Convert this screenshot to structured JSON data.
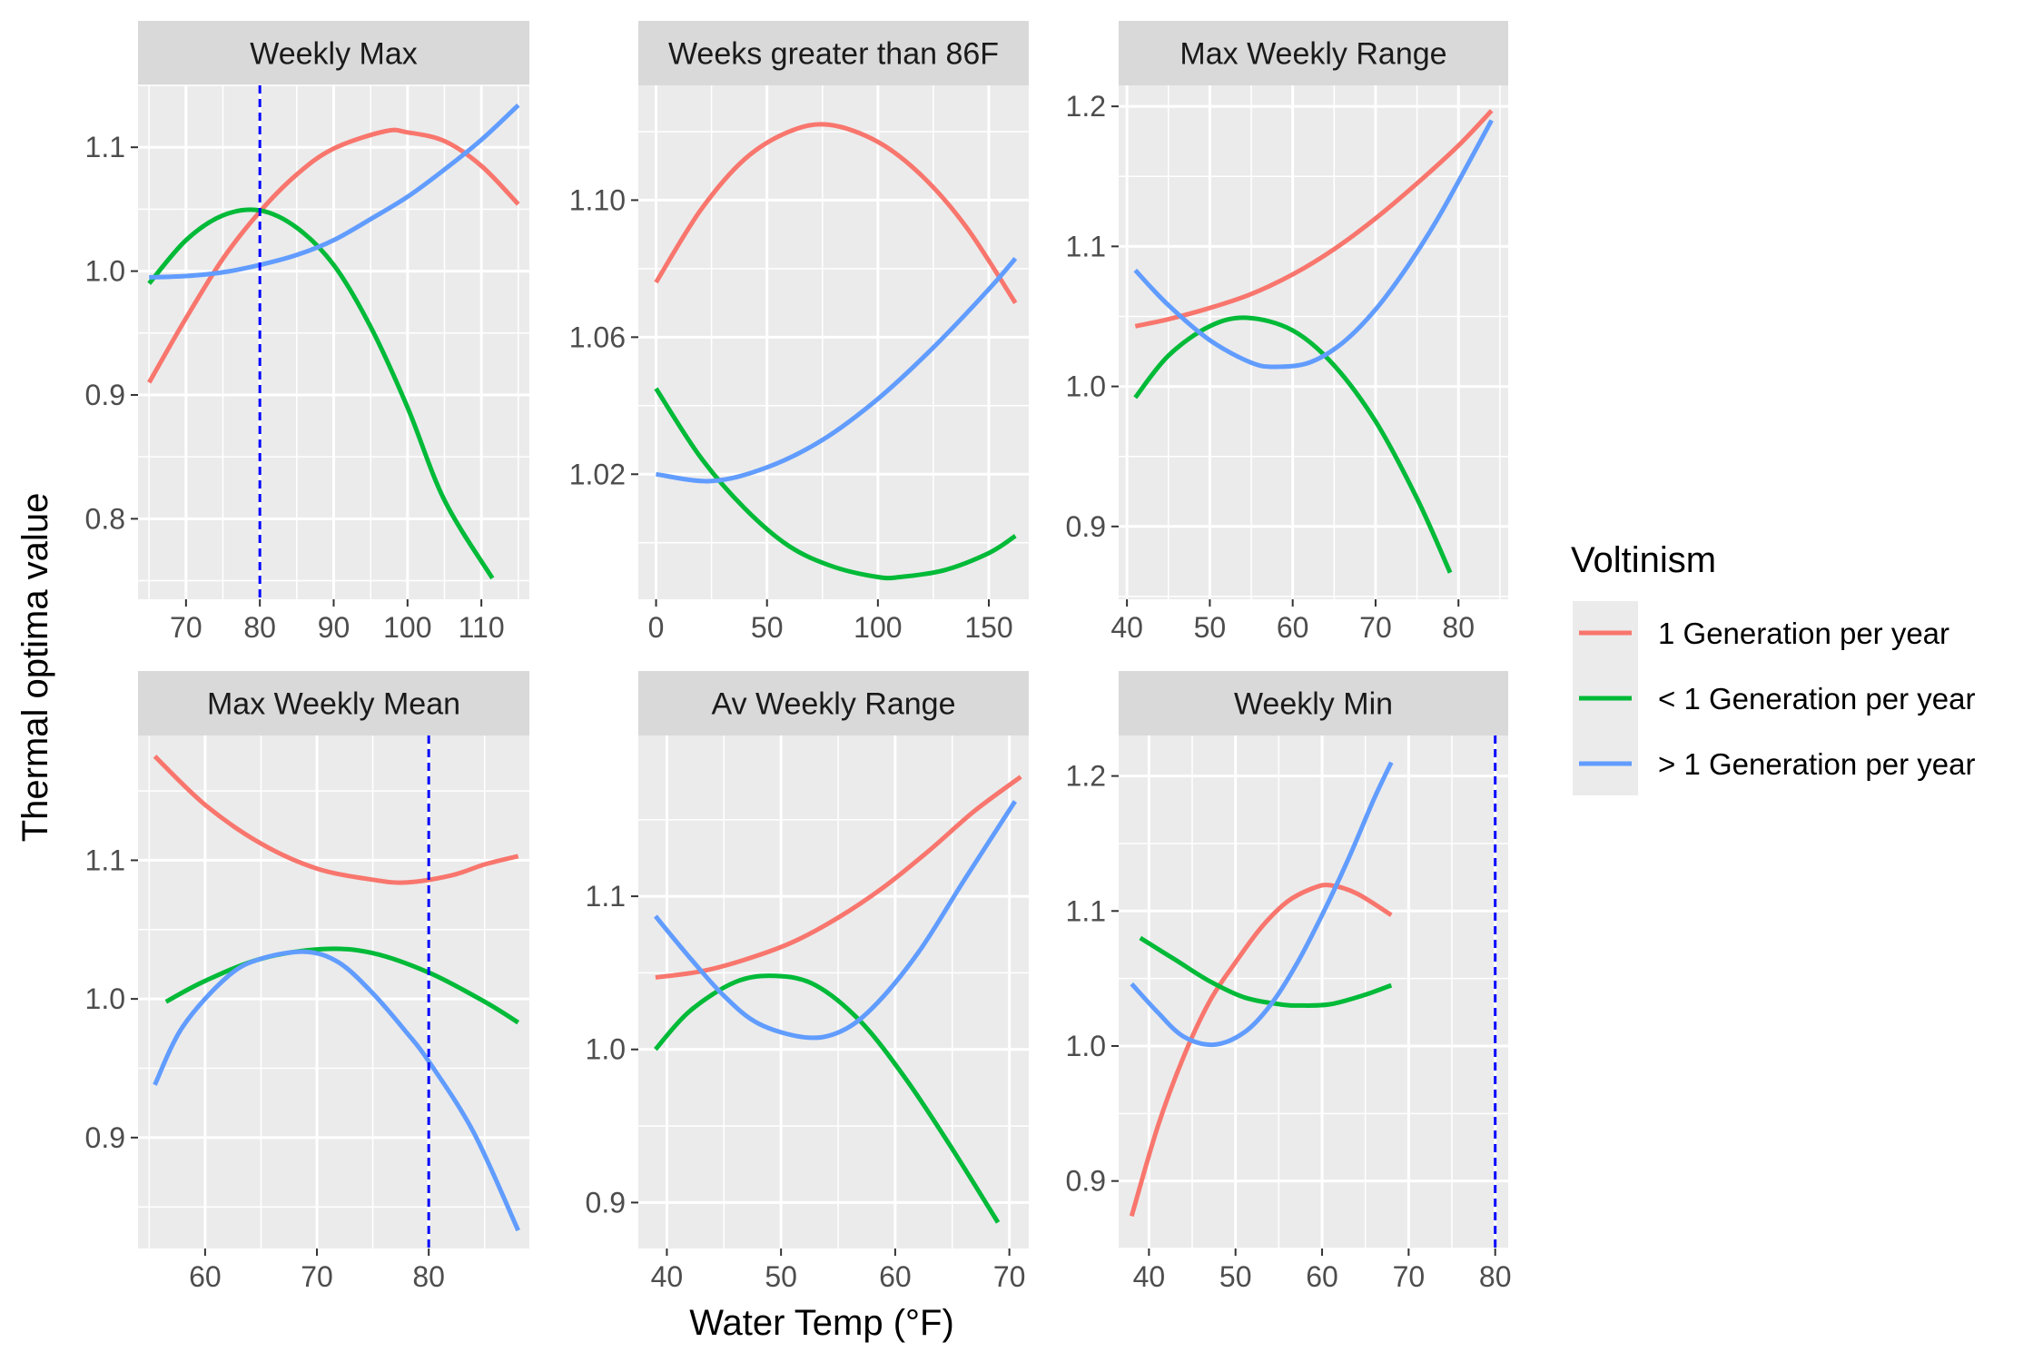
{
  "chart_data": {
    "type": "line",
    "ylabel": "Thermal optima value",
    "xlabel": "Water Temp (°F)",
    "legend": {
      "title": "Voltinism",
      "placement": "right",
      "entries": [
        {
          "key": "one",
          "label": "1 Generation per year",
          "color": "#F8766D"
        },
        {
          "key": "lt",
          "label": "< 1 Generation per year",
          "color": "#00BA38"
        },
        {
          "key": "gt",
          "label": "> 1 Generation per year",
          "color": "#619CFF"
        }
      ]
    },
    "grid": true,
    "vline_color": "#0000FF",
    "panels": [
      {
        "title": "Weekly Max",
        "xlim": [
          63.5,
          116.5
        ],
        "ylim": [
          0.735,
          1.15
        ],
        "xticks": [
          70,
          80,
          90,
          100,
          110
        ],
        "xtick_labels": [
          "70",
          "80",
          "90",
          "100",
          "110"
        ],
        "yticks": [
          0.8,
          0.9,
          1.0,
          1.1
        ],
        "ytick_labels": [
          "0.8",
          "0.9",
          "1.0",
          "1.1"
        ],
        "vline": 80,
        "series": [
          {
            "key": "one",
            "x": [
              65,
              70,
              75,
              80,
              85,
              90,
              97,
              100,
              105,
              110,
              115
            ],
            "y": [
              0.91,
              0.962,
              1.01,
              1.048,
              1.078,
              1.099,
              1.113,
              1.112,
              1.105,
              1.085,
              1.054
            ]
          },
          {
            "key": "lt",
            "x": [
              65,
              70,
              75,
              80,
              85,
              90,
              95,
              100,
              105,
              111.5
            ],
            "y": [
              0.99,
              1.025,
              1.045,
              1.049,
              1.035,
              1.005,
              0.955,
              0.89,
              0.815,
              0.752
            ]
          },
          {
            "key": "gt",
            "x": [
              65,
              70,
              75,
              80,
              85,
              90,
              95,
              100,
              105,
              110,
              115
            ],
            "y": [
              0.995,
              0.996,
              0.999,
              1.005,
              1.013,
              1.025,
              1.042,
              1.06,
              1.082,
              1.106,
              1.134
            ]
          }
        ]
      },
      {
        "title": "Weeks greater than 86F",
        "xlim": [
          -8,
          168
        ],
        "ylim": [
          0.9835,
          1.1335
        ],
        "xticks": [
          0,
          50,
          100,
          150
        ],
        "xtick_labels": [
          "0",
          "50",
          "100",
          "150"
        ],
        "yticks": [
          1.02,
          1.06,
          1.1
        ],
        "ytick_labels": [
          "1.02",
          "1.06",
          "1.10"
        ],
        "vline": null,
        "series": [
          {
            "key": "one",
            "x": [
              0,
              20,
              40,
              60,
              78,
              100,
              120,
              140,
              162
            ],
            "y": [
              1.076,
              1.097,
              1.112,
              1.12,
              1.122,
              1.117,
              1.107,
              1.092,
              1.07
            ]
          },
          {
            "key": "lt",
            "x": [
              0,
              20,
              40,
              60,
              80,
              100,
              110,
              130,
              150,
              162
            ],
            "y": [
              1.045,
              1.025,
              1.01,
              0.999,
              0.993,
              0.99,
              0.99,
              0.992,
              0.997,
              1.002
            ]
          },
          {
            "key": "gt",
            "x": [
              0,
              25,
              50,
              75,
              100,
              125,
              150,
              162
            ],
            "y": [
              1.02,
              1.018,
              1.022,
              1.03,
              1.042,
              1.057,
              1.074,
              1.083
            ]
          }
        ]
      },
      {
        "title": "Max Weekly Range",
        "xlim": [
          39,
          86
        ],
        "ylim": [
          0.848,
          1.215
        ],
        "xticks": [
          40,
          50,
          60,
          70,
          80
        ],
        "xtick_labels": [
          "40",
          "50",
          "60",
          "70",
          "80"
        ],
        "yticks": [
          0.9,
          1.0,
          1.1,
          1.2
        ],
        "ytick_labels": [
          "0.9",
          "1.0",
          "1.1",
          "1.2"
        ],
        "vline": null,
        "series": [
          {
            "key": "one",
            "x": [
              41,
              45,
              50,
              55,
              60,
              65,
              70,
              75,
              80,
              84
            ],
            "y": [
              1.043,
              1.048,
              1.056,
              1.066,
              1.08,
              1.098,
              1.12,
              1.145,
              1.172,
              1.197
            ]
          },
          {
            "key": "lt",
            "x": [
              41,
              45,
              50,
              54.5,
              60,
              65,
              70,
              75,
              79
            ],
            "y": [
              0.992,
              1.022,
              1.043,
              1.049,
              1.04,
              1.015,
              0.975,
              0.92,
              0.867
            ]
          },
          {
            "key": "gt",
            "x": [
              41,
              45,
              50,
              55,
              58,
              62,
              66,
              70,
              74,
              78,
              84
            ],
            "y": [
              1.083,
              1.058,
              1.033,
              1.017,
              1.014,
              1.017,
              1.031,
              1.055,
              1.087,
              1.125,
              1.19
            ]
          }
        ]
      },
      {
        "title": "Max Weekly Mean",
        "xlim": [
          54,
          89
        ],
        "ylim": [
          0.82,
          1.19
        ],
        "xticks": [
          60,
          70,
          80
        ],
        "xtick_labels": [
          "60",
          "70",
          "80"
        ],
        "yticks": [
          0.9,
          1.0,
          1.1
        ],
        "ytick_labels": [
          "0.9",
          "1.0",
          "1.1"
        ],
        "vline": 80,
        "series": [
          {
            "key": "one",
            "x": [
              55.5,
              60,
              65,
              70,
              75,
              78,
              82,
              85,
              88
            ],
            "y": [
              1.175,
              1.14,
              1.112,
              1.094,
              1.086,
              1.084,
              1.089,
              1.097,
              1.103
            ]
          },
          {
            "key": "lt",
            "x": [
              56.5,
              60,
              65,
              70.5,
              75,
              80,
              85,
              88
            ],
            "y": [
              0.998,
              1.013,
              1.029,
              1.036,
              1.033,
              1.019,
              0.998,
              0.983
            ]
          },
          {
            "key": "gt",
            "x": [
              55.5,
              58,
              62,
              65,
              69,
              72,
              75,
              78,
              80,
              84,
              88
            ],
            "y": [
              0.938,
              0.98,
              1.016,
              1.029,
              1.034,
              1.026,
              1.004,
              0.976,
              0.955,
              0.904,
              0.833
            ]
          }
        ]
      },
      {
        "title": "Av Weekly Range",
        "xlim": [
          37.5,
          71.7
        ],
        "ylim": [
          0.87,
          1.205
        ],
        "xticks": [
          40,
          50,
          60,
          70
        ],
        "xtick_labels": [
          "40",
          "50",
          "60",
          "70"
        ],
        "yticks": [
          0.9,
          1.0,
          1.1
        ],
        "ytick_labels": [
          "0.9",
          "1.0",
          "1.1"
        ],
        "vline": null,
        "series": [
          {
            "key": "one",
            "x": [
              39,
              43,
              47,
              51,
              55,
              59,
              63,
              67,
              71
            ],
            "y": [
              1.047,
              1.051,
              1.059,
              1.07,
              1.086,
              1.106,
              1.13,
              1.156,
              1.178
            ]
          },
          {
            "key": "lt",
            "x": [
              39,
              42,
              46,
              49.5,
              53,
              57,
              61,
              65,
              69
            ],
            "y": [
              1.0,
              1.025,
              1.044,
              1.048,
              1.042,
              1.018,
              0.98,
              0.935,
              0.887
            ]
          },
          {
            "key": "gt",
            "x": [
              39,
              42,
              45,
              48,
              52,
              55,
              58,
              62,
              66,
              70.5
            ],
            "y": [
              1.087,
              1.06,
              1.035,
              1.017,
              1.008,
              1.011,
              1.027,
              1.063,
              1.11,
              1.162
            ]
          }
        ]
      },
      {
        "title": "Weekly Min",
        "xlim": [
          36.5,
          81.5
        ],
        "ylim": [
          0.85,
          1.23
        ],
        "xticks": [
          40,
          50,
          60,
          70,
          80
        ],
        "xtick_labels": [
          "40",
          "50",
          "60",
          "70",
          "80"
        ],
        "yticks": [
          0.9,
          1.0,
          1.1,
          1.2
        ],
        "ytick_labels": [
          "0.9",
          "1.0",
          "1.1",
          "1.2"
        ],
        "vline": 80,
        "series": [
          {
            "key": "one",
            "x": [
              38,
              41,
              44,
              47,
              50,
              53,
              56,
              59,
              61,
              64,
              68
            ],
            "y": [
              0.874,
              0.94,
              0.992,
              1.033,
              1.062,
              1.088,
              1.107,
              1.117,
              1.119,
              1.113,
              1.097
            ]
          },
          {
            "key": "lt",
            "x": [
              39,
              43,
              47,
              51,
              55,
              57.5,
              61,
              65,
              68
            ],
            "y": [
              1.08,
              1.064,
              1.048,
              1.036,
              1.031,
              1.03,
              1.031,
              1.038,
              1.045
            ]
          },
          {
            "key": "gt",
            "x": [
              38,
              41,
              44,
              47.5,
              51,
              54,
              57,
              60,
              63,
              66,
              68
            ],
            "y": [
              1.046,
              1.025,
              1.007,
              1.001,
              1.01,
              1.03,
              1.06,
              1.097,
              1.138,
              1.183,
              1.21
            ]
          }
        ]
      }
    ]
  }
}
